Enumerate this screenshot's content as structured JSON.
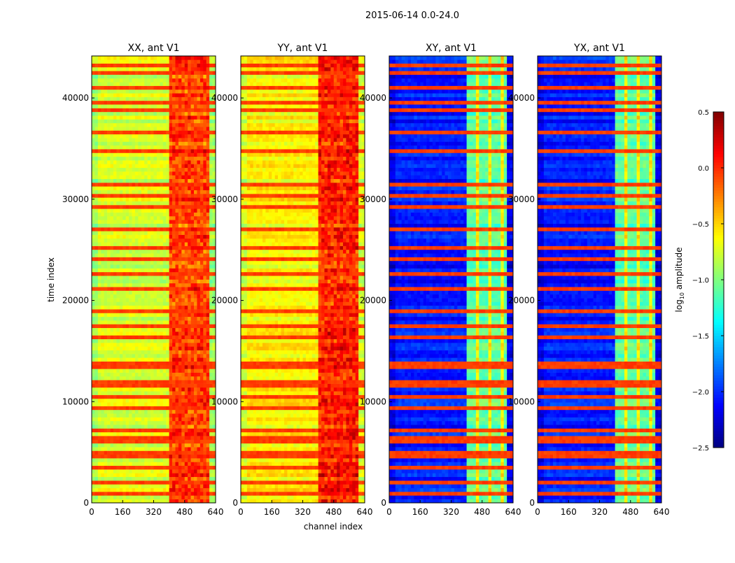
{
  "chart_data": {
    "type": "heatmap",
    "suptitle": "2015-06-14 0.0-24.0",
    "xlabel": "channel index",
    "ylabel": "time index",
    "xlim": [
      0,
      640
    ],
    "ylim": [
      0,
      44150
    ],
    "xticks": [
      "0",
      "160",
      "320",
      "480",
      "640"
    ],
    "xtick_values": [
      0,
      160,
      320,
      480,
      640
    ],
    "yticks": [
      "0",
      "10000",
      "20000",
      "30000",
      "40000"
    ],
    "ytick_values": [
      0,
      10000,
      20000,
      30000,
      40000
    ],
    "colormap": "jet",
    "colorbar": {
      "label": "log10 amplitude",
      "label_main": "log",
      "label_sub": "10",
      "label_rest": " amplitude",
      "vmin": -2.5,
      "vmax": 0.5,
      "ticks": [
        "0.5",
        "0.0",
        "−0.5",
        "−1.0",
        "−1.5",
        "−2.0",
        "−2.5"
      ],
      "tick_values": [
        0.5,
        0.0,
        -0.5,
        -1.0,
        -1.5,
        -2.0,
        -2.5
      ]
    },
    "panels": [
      {
        "title": "XX, ant V1",
        "base_level": -0.75,
        "band_channels": [
          400,
          600
        ],
        "band_level": -0.15,
        "band_stripes": false
      },
      {
        "title": "YY, ant V1",
        "base_level": -0.6,
        "band_channels": [
          400,
          600
        ],
        "band_level": -0.05,
        "band_stripes": false
      },
      {
        "title": "XY, ant V1",
        "base_level": -2.05,
        "band_channels": [
          400,
          600
        ],
        "band_level": -1.1,
        "band_stripes": true
      },
      {
        "title": "YX, ant V1",
        "base_level": -2.05,
        "band_channels": [
          400,
          600
        ],
        "band_level": -1.1,
        "band_stripes": true
      }
    ],
    "bright_rows_time_index": [
      43300,
      42500,
      41000,
      39400,
      38900,
      36500,
      34700,
      31500,
      30300,
      29300,
      27000,
      25300,
      24000,
      22500,
      21000,
      19000,
      17300,
      16500,
      13800,
      13300,
      12000,
      11500,
      10500,
      9500,
      7000,
      6500,
      5900,
      5000,
      4500,
      3600,
      2000,
      1000
    ]
  }
}
